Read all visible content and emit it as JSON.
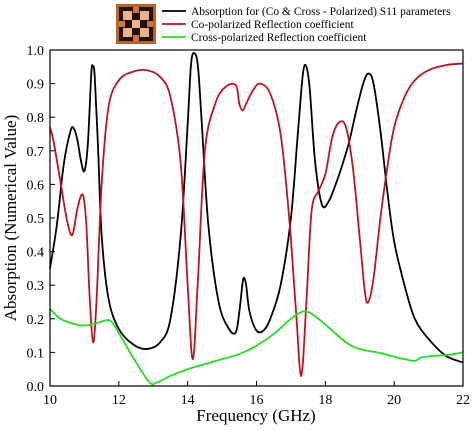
{
  "chart_data": {
    "type": "line",
    "xlabel": "Frequency (GHz)",
    "ylabel": "Absorption (Numerical Value)",
    "xlim": [
      10,
      22
    ],
    "ylim": [
      0,
      1.0
    ],
    "x_ticks": [
      10,
      12,
      14,
      16,
      18,
      20,
      22
    ],
    "y_ticks": [
      0.0,
      0.1,
      0.2,
      0.3,
      0.4,
      0.5,
      0.6,
      0.7,
      0.8,
      0.9,
      1.0
    ],
    "x_tick_labels": [
      "10",
      "12",
      "14",
      "16",
      "18",
      "20",
      "22"
    ],
    "y_tick_labels": [
      "0.0",
      "0.1",
      "0.2",
      "0.3",
      "0.4",
      "0.5",
      "0.6",
      "0.7",
      "0.8",
      "0.9",
      "1.0"
    ],
    "grid": false,
    "legend_position": "top",
    "series": [
      {
        "name": "Absorption for (Co & Cross - Polarized) S11 parameters",
        "color": "#000000",
        "points": [
          [
            10.0,
            0.35
          ],
          [
            10.2,
            0.48
          ],
          [
            10.4,
            0.66
          ],
          [
            10.6,
            0.76
          ],
          [
            10.7,
            0.765
          ],
          [
            10.8,
            0.73
          ],
          [
            10.9,
            0.67
          ],
          [
            11.0,
            0.64
          ],
          [
            11.1,
            0.72
          ],
          [
            11.2,
            0.93
          ],
          [
            11.25,
            0.95
          ],
          [
            11.3,
            0.92
          ],
          [
            11.4,
            0.7
          ],
          [
            11.5,
            0.45
          ],
          [
            11.7,
            0.26
          ],
          [
            12.0,
            0.17
          ],
          [
            12.4,
            0.125
          ],
          [
            12.8,
            0.11
          ],
          [
            13.2,
            0.13
          ],
          [
            13.5,
            0.2
          ],
          [
            13.8,
            0.45
          ],
          [
            14.0,
            0.78
          ],
          [
            14.1,
            0.96
          ],
          [
            14.2,
            0.99
          ],
          [
            14.3,
            0.95
          ],
          [
            14.4,
            0.8
          ],
          [
            14.6,
            0.48
          ],
          [
            14.9,
            0.25
          ],
          [
            15.2,
            0.17
          ],
          [
            15.4,
            0.16
          ],
          [
            15.5,
            0.22
          ],
          [
            15.6,
            0.31
          ],
          [
            15.65,
            0.32
          ],
          [
            15.7,
            0.3
          ],
          [
            15.8,
            0.22
          ],
          [
            16.0,
            0.165
          ],
          [
            16.2,
            0.165
          ],
          [
            16.4,
            0.2
          ],
          [
            16.7,
            0.3
          ],
          [
            17.0,
            0.5
          ],
          [
            17.2,
            0.75
          ],
          [
            17.35,
            0.93
          ],
          [
            17.45,
            0.95
          ],
          [
            17.55,
            0.88
          ],
          [
            17.7,
            0.67
          ],
          [
            17.9,
            0.54
          ],
          [
            18.1,
            0.55
          ],
          [
            18.3,
            0.6
          ],
          [
            18.5,
            0.66
          ],
          [
            18.7,
            0.73
          ],
          [
            18.9,
            0.82
          ],
          [
            19.1,
            0.9
          ],
          [
            19.25,
            0.93
          ],
          [
            19.4,
            0.9
          ],
          [
            19.6,
            0.76
          ],
          [
            19.8,
            0.58
          ],
          [
            20.0,
            0.43
          ],
          [
            20.3,
            0.3
          ],
          [
            20.6,
            0.2
          ],
          [
            21.0,
            0.14
          ],
          [
            21.5,
            0.09
          ],
          [
            22.0,
            0.07
          ]
        ]
      },
      {
        "name": "Co-polarized Reflection coefficient",
        "color": "#c0141c",
        "points": [
          [
            10.0,
            0.77
          ],
          [
            10.1,
            0.73
          ],
          [
            10.3,
            0.61
          ],
          [
            10.5,
            0.49
          ],
          [
            10.65,
            0.45
          ],
          [
            10.8,
            0.53
          ],
          [
            10.95,
            0.57
          ],
          [
            11.05,
            0.49
          ],
          [
            11.15,
            0.27
          ],
          [
            11.25,
            0.13
          ],
          [
            11.35,
            0.25
          ],
          [
            11.5,
            0.6
          ],
          [
            11.7,
            0.83
          ],
          [
            12.0,
            0.91
          ],
          [
            12.4,
            0.935
          ],
          [
            12.8,
            0.94
          ],
          [
            13.2,
            0.92
          ],
          [
            13.5,
            0.86
          ],
          [
            13.8,
            0.66
          ],
          [
            14.0,
            0.3
          ],
          [
            14.15,
            0.08
          ],
          [
            14.3,
            0.32
          ],
          [
            14.5,
            0.7
          ],
          [
            14.8,
            0.84
          ],
          [
            15.1,
            0.89
          ],
          [
            15.4,
            0.895
          ],
          [
            15.5,
            0.84
          ],
          [
            15.6,
            0.82
          ],
          [
            15.7,
            0.84
          ],
          [
            15.9,
            0.88
          ],
          [
            16.1,
            0.9
          ],
          [
            16.4,
            0.87
          ],
          [
            16.7,
            0.75
          ],
          [
            16.95,
            0.5
          ],
          [
            17.15,
            0.22
          ],
          [
            17.3,
            0.03
          ],
          [
            17.45,
            0.25
          ],
          [
            17.6,
            0.52
          ],
          [
            17.8,
            0.58
          ],
          [
            18.0,
            0.63
          ],
          [
            18.2,
            0.74
          ],
          [
            18.4,
            0.785
          ],
          [
            18.6,
            0.77
          ],
          [
            18.8,
            0.65
          ],
          [
            19.0,
            0.44
          ],
          [
            19.15,
            0.28
          ],
          [
            19.25,
            0.25
          ],
          [
            19.4,
            0.32
          ],
          [
            19.6,
            0.5
          ],
          [
            19.8,
            0.65
          ],
          [
            20.0,
            0.77
          ],
          [
            20.3,
            0.86
          ],
          [
            20.6,
            0.91
          ],
          [
            21.0,
            0.94
          ],
          [
            21.5,
            0.955
          ],
          [
            22.0,
            0.96
          ]
        ]
      },
      {
        "name": "Cross-polarized Reflection coefficient",
        "color": "#22dd22",
        "points": [
          [
            10.0,
            0.23
          ],
          [
            10.3,
            0.2
          ],
          [
            10.7,
            0.185
          ],
          [
            11.0,
            0.18
          ],
          [
            11.3,
            0.185
          ],
          [
            11.6,
            0.195
          ],
          [
            11.8,
            0.19
          ],
          [
            12.1,
            0.14
          ],
          [
            12.5,
            0.07
          ],
          [
            12.9,
            0.01
          ],
          [
            13.1,
            0.01
          ],
          [
            13.5,
            0.03
          ],
          [
            14.0,
            0.05
          ],
          [
            14.5,
            0.065
          ],
          [
            15.0,
            0.08
          ],
          [
            15.5,
            0.095
          ],
          [
            16.0,
            0.12
          ],
          [
            16.5,
            0.155
          ],
          [
            17.0,
            0.2
          ],
          [
            17.3,
            0.22
          ],
          [
            17.5,
            0.22
          ],
          [
            17.8,
            0.2
          ],
          [
            18.2,
            0.165
          ],
          [
            18.6,
            0.13
          ],
          [
            19.0,
            0.11
          ],
          [
            19.5,
            0.1
          ],
          [
            19.9,
            0.09
          ],
          [
            20.3,
            0.08
          ],
          [
            20.6,
            0.075
          ],
          [
            20.8,
            0.085
          ],
          [
            21.2,
            0.09
          ],
          [
            21.6,
            0.093
          ],
          [
            22.0,
            0.1
          ]
        ]
      }
    ]
  }
}
